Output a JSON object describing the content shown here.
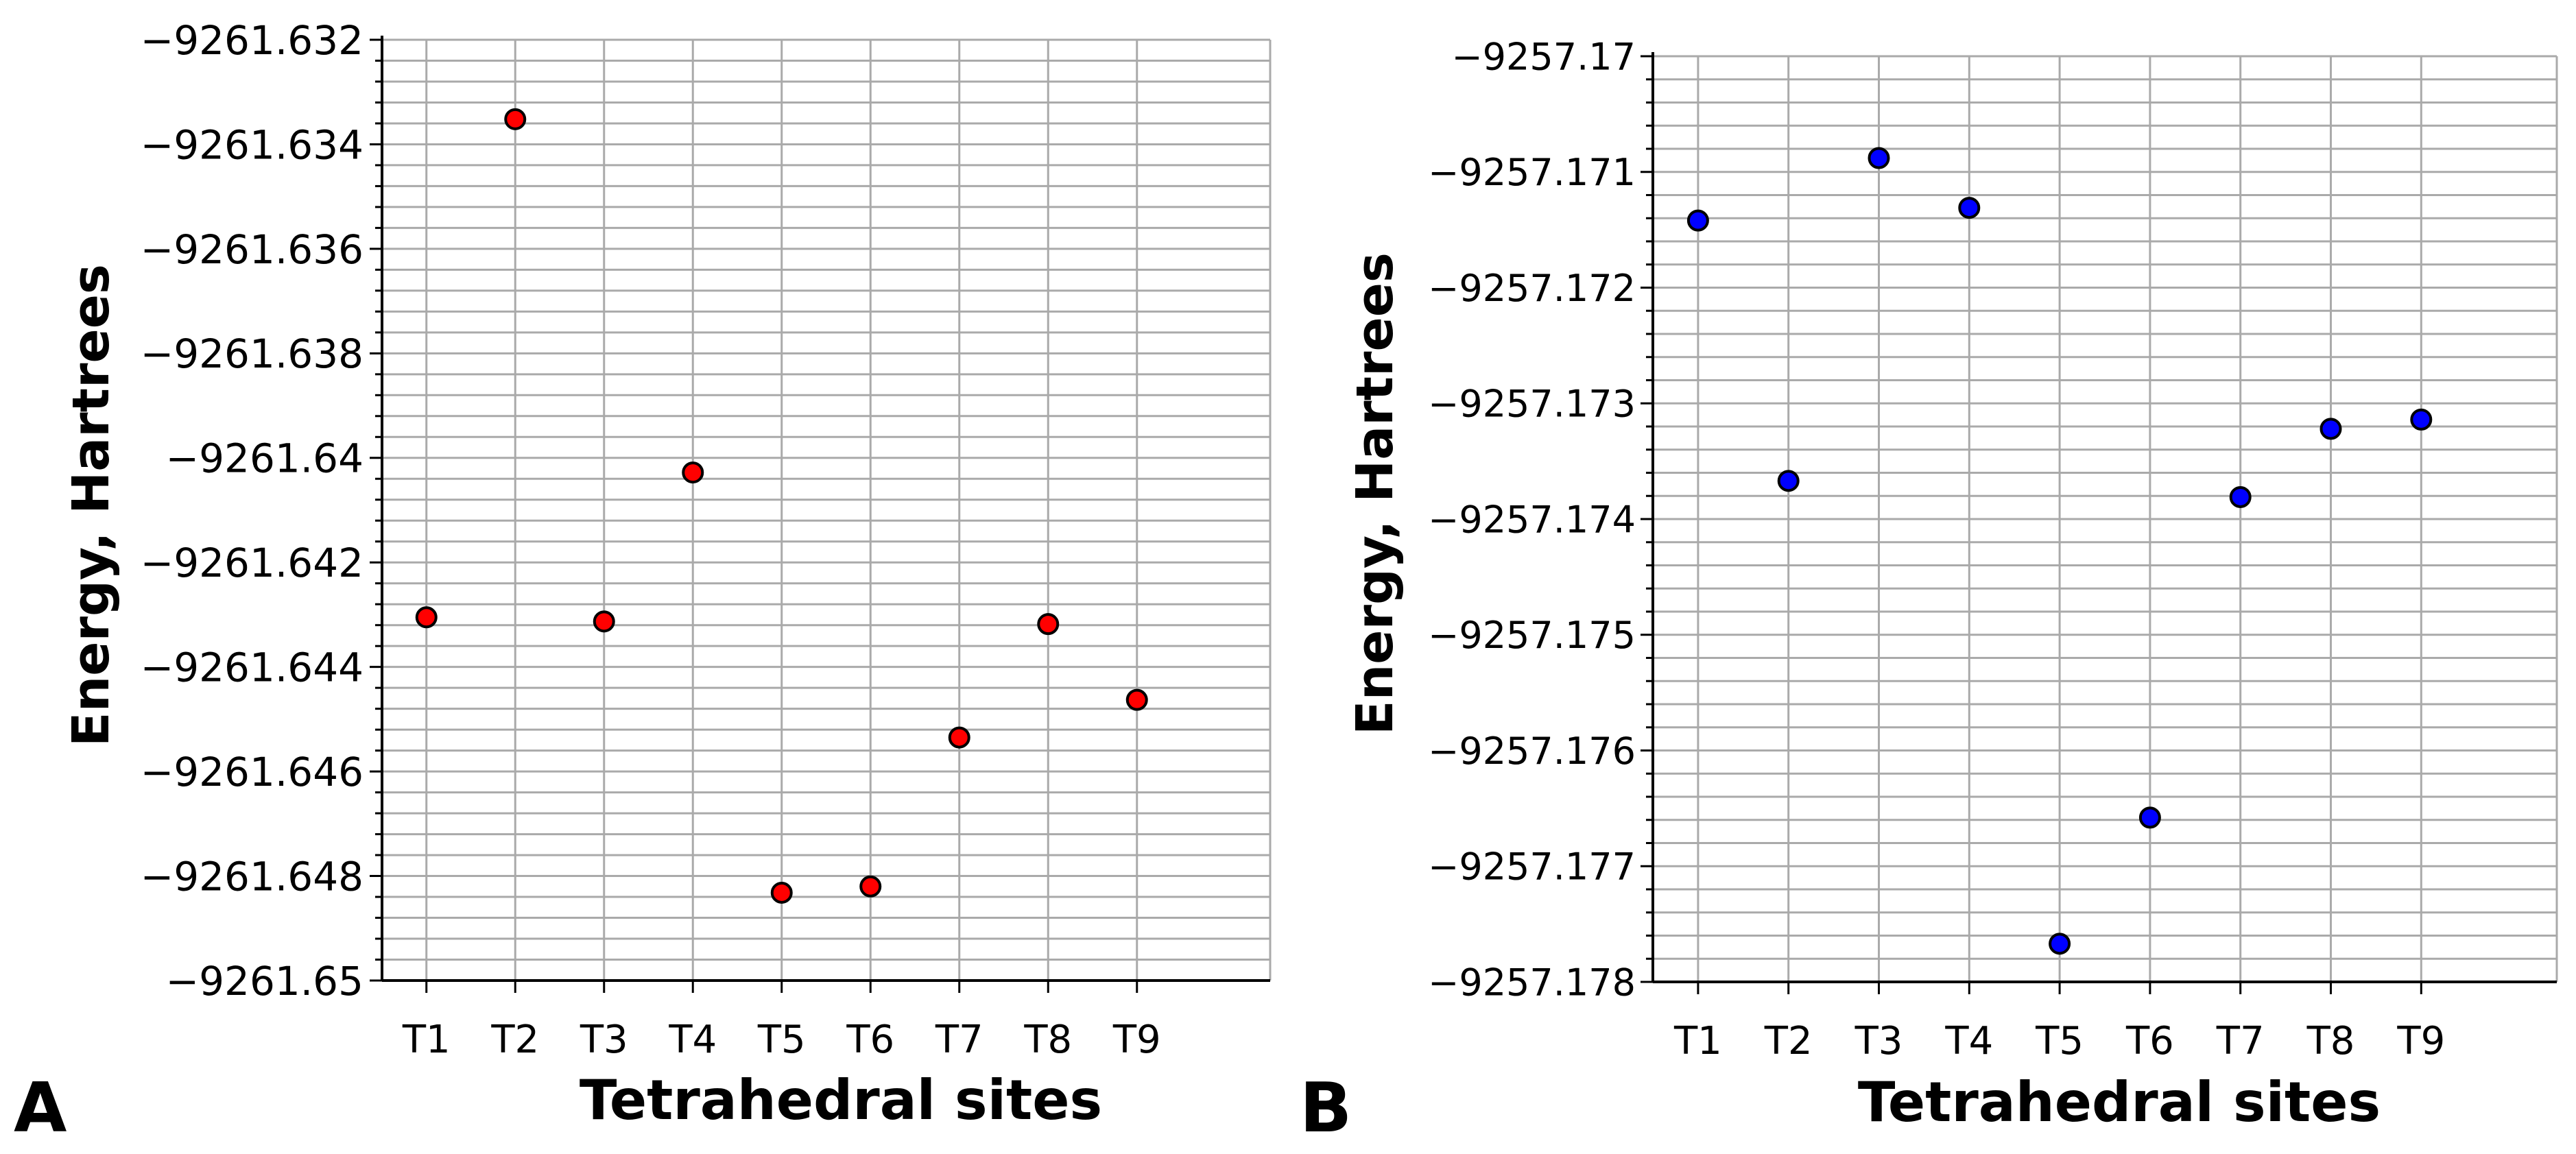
{
  "chart_data": [
    {
      "type": "scatter",
      "panel_label": "A",
      "categories": [
        "T1",
        "T2",
        "T3",
        "T4",
        "T5",
        "T6",
        "T7",
        "T8",
        "T9"
      ],
      "series": [
        {
          "name": "Energy",
          "color": "#ff0000",
          "values": [
            -9261.64305,
            -9261.63352,
            -9261.64313,
            -9261.64028,
            -9261.64832,
            -9261.6482,
            -9261.64535,
            -9261.64318,
            -9261.64463
          ]
        }
      ],
      "ylim": [
        -9261.65,
        -9261.632
      ],
      "yticks": [
        -9261.632,
        -9261.634,
        -9261.636,
        -9261.638,
        -9261.64,
        -9261.642,
        -9261.644,
        -9261.646,
        -9261.648,
        -9261.65
      ],
      "ytick_labels": [
        "−9261.632",
        "−9261.634",
        "−9261.636",
        "−9261.638",
        "−9261.64",
        "−9261.642",
        "−9261.644",
        "−9261.646",
        "−9261.648",
        "−9261.65"
      ],
      "minor_per_major": 4,
      "xlabel": "Tetrahedral sites",
      "ylabel": "Energy, Hartrees",
      "grid": true
    },
    {
      "type": "scatter",
      "panel_label": "B",
      "categories": [
        "T1",
        "T2",
        "T3",
        "T4",
        "T5",
        "T6",
        "T7",
        "T8",
        "T9"
      ],
      "series": [
        {
          "name": "Energy",
          "color": "#0000ff",
          "values": [
            -9257.17142,
            -9257.17367,
            -9257.17088,
            -9257.17131,
            -9257.17767,
            -9257.17658,
            -9257.17381,
            -9257.17322,
            -9257.17314
          ]
        }
      ],
      "ylim": [
        -9257.178,
        -9257.17
      ],
      "yticks": [
        -9257.17,
        -9257.171,
        -9257.172,
        -9257.173,
        -9257.174,
        -9257.175,
        -9257.176,
        -9257.177,
        -9257.178
      ],
      "ytick_labels": [
        "−9257.17",
        "−9257.171",
        "−9257.172",
        "−9257.173",
        "−9257.174",
        "−9257.175",
        "−9257.176",
        "−9257.177",
        "−9257.178"
      ],
      "minor_per_major": 4,
      "xlabel": "Tetrahedral sites",
      "ylabel": "Energy, Hartrees",
      "grid": true
    }
  ]
}
